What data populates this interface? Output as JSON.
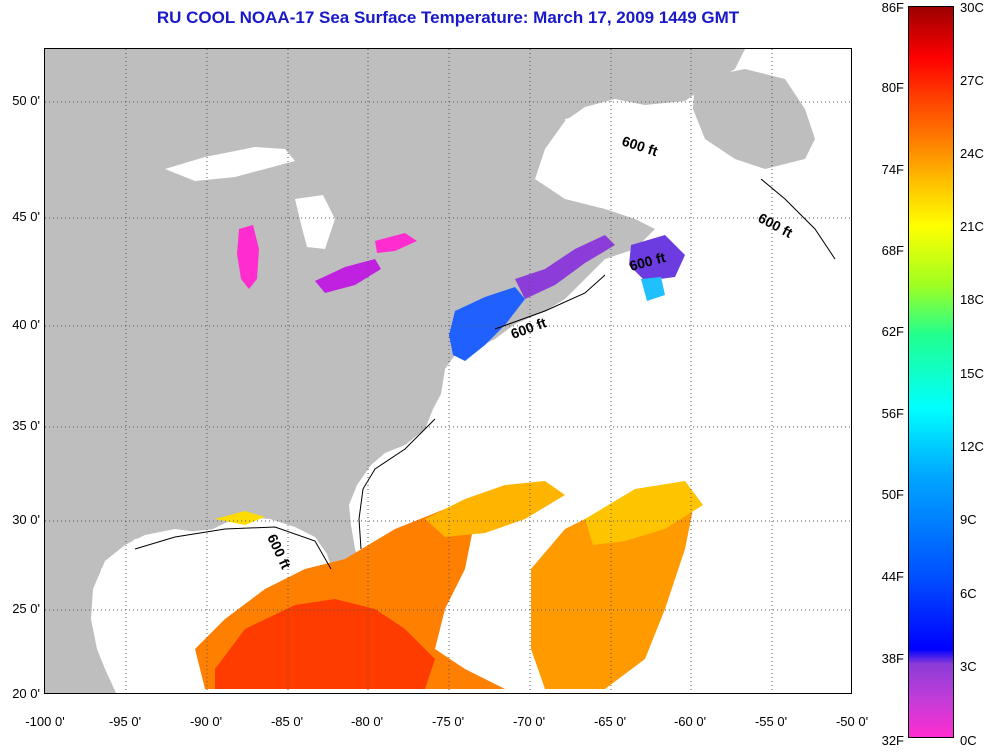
{
  "title": "RU COOL  NOAA-17  Sea Surface Temperature:  March 17, 2009 1449 GMT",
  "lat_labels": [
    "50 0'",
    "45 0'",
    "40 0'",
    "35 0'",
    "30 0'",
    "25 0'",
    "20 0'"
  ],
  "lon_labels": [
    "-100 0'",
    "-95 0'",
    "-90 0'",
    "-85 0'",
    "-80 0'",
    "-75 0'",
    "-70 0'",
    "-65 0'",
    "-60 0'",
    "-55 0'",
    "-50 0'"
  ],
  "contour_label": "600 ft",
  "colorbar": {
    "fahrenheit": [
      "86F",
      "80F",
      "74F",
      "68F",
      "62F",
      "56F",
      "50F",
      "44F",
      "38F",
      "32F"
    ],
    "celsius": [
      "30C",
      "27C",
      "24C",
      "21C",
      "18C",
      "15C",
      "12C",
      "9C",
      "6C",
      "3C",
      "0C"
    ]
  },
  "colors": {
    "title": "#1919c8",
    "land": "#bebebe",
    "grid": "#555555"
  }
}
